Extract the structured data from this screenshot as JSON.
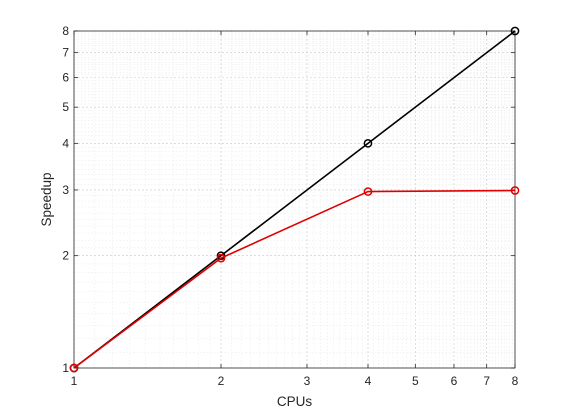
{
  "chart_data": {
    "type": "line",
    "title": "",
    "xlabel": "CPUs",
    "ylabel": "Speedup",
    "xscale": "log",
    "yscale": "log",
    "xlim": [
      1,
      8
    ],
    "ylim": [
      1,
      8
    ],
    "xticks": [
      1,
      2,
      3,
      4,
      5,
      6,
      7,
      8
    ],
    "yticks": [
      1,
      2,
      3,
      4,
      5,
      6,
      7,
      8
    ],
    "grid": true,
    "minor_grid": true,
    "legend": false,
    "series": [
      {
        "color": "#000000",
        "marker": "circle",
        "x": [
          1,
          2,
          4,
          8
        ],
        "y": [
          1,
          2,
          4,
          8
        ]
      },
      {
        "color": "#e00000",
        "marker": "circle",
        "x": [
          1,
          2,
          4,
          8
        ],
        "y": [
          1,
          1.97,
          2.97,
          2.99
        ]
      }
    ]
  }
}
